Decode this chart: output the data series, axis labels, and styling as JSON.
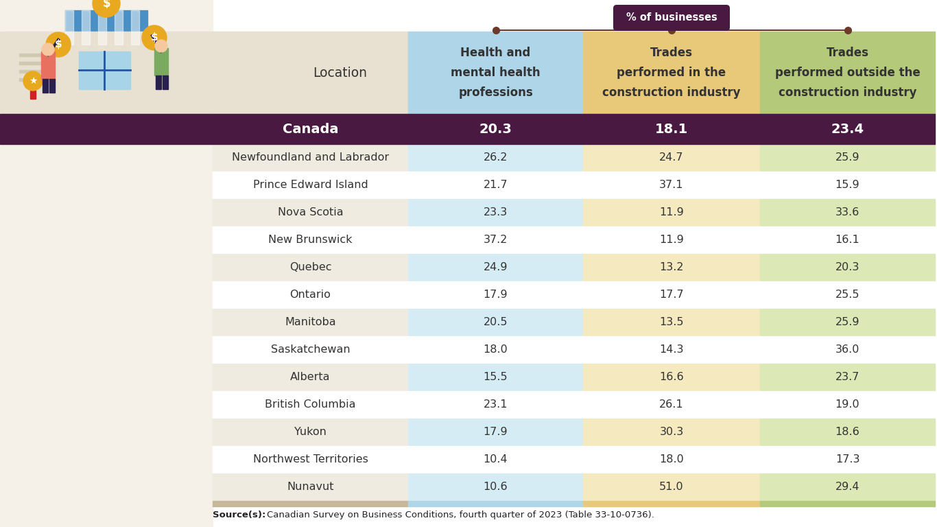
{
  "locations": [
    "Canada",
    "Newfoundland and Labrador",
    "Prince Edward Island",
    "Nova Scotia",
    "New Brunswick",
    "Quebec",
    "Ontario",
    "Manitoba",
    "Saskatchewan",
    "Alberta",
    "British Columbia",
    "Yukon",
    "Northwest Territories",
    "Nunavut"
  ],
  "health": [
    20.3,
    26.2,
    21.7,
    23.3,
    37.2,
    24.9,
    17.9,
    20.5,
    18.0,
    15.5,
    23.1,
    17.9,
    10.4,
    10.6
  ],
  "trades_construction": [
    18.1,
    24.7,
    37.1,
    11.9,
    11.9,
    13.2,
    17.7,
    13.5,
    14.3,
    16.6,
    26.1,
    30.3,
    18.0,
    51.0
  ],
  "trades_outside": [
    23.4,
    25.9,
    15.9,
    33.6,
    16.1,
    20.3,
    25.5,
    25.9,
    36.0,
    23.7,
    19.0,
    18.6,
    17.3,
    29.4
  ],
  "col_header_1": "Health and\nmental health\nprofessions",
  "col_header_2": "Trades\nperformed in the\nconstruction industry",
  "col_header_3": "Trades\nperformed outside the\nconstruction industry",
  "pill_label": "% of businesses",
  "source_text": "Canadian Survey on Business Conditions, fourth quarter of 2023 (Table 33-10-0736).",
  "source_bold": "Source(s):",
  "canada_row_bg": "#4a1942",
  "canada_text_color": "#ffffff",
  "header_bg_1": "#aed6e8",
  "header_bg_2": "#e8c97a",
  "header_bg_3": "#b5c97a",
  "data_bg_1_even": "#d6ecf5",
  "data_bg_1_odd": "#ffffff",
  "data_bg_2_even": "#f5e9c0",
  "data_bg_2_odd": "#ffffff",
  "data_bg_3_even": "#dce8b5",
  "data_bg_3_odd": "#ffffff",
  "location_bg_even": "#f0ebe0",
  "location_bg_odd": "#ffffff",
  "pill_bg": "#4a1942",
  "pill_text": "#ffffff",
  "bottom_bar_1": "#aed6e8",
  "bottom_bar_2": "#e8c97a",
  "bottom_bar_3": "#b5c97a",
  "bottom_bar_loc": "#c8b89a",
  "connector_color": "#6b3a2a"
}
